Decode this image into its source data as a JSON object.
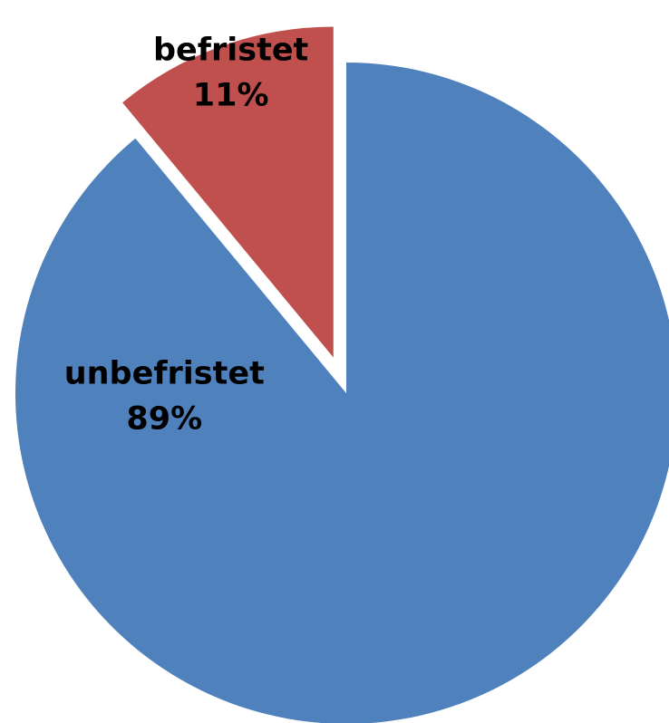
{
  "chart_data": {
    "type": "pie",
    "categories": [
      "unbefristet",
      "befristet"
    ],
    "values": [
      89,
      11
    ],
    "value_labels": [
      "89%",
      "11%"
    ],
    "colors": [
      "#4f81bd",
      "#c0504d"
    ],
    "exploded": [
      false,
      true
    ]
  }
}
